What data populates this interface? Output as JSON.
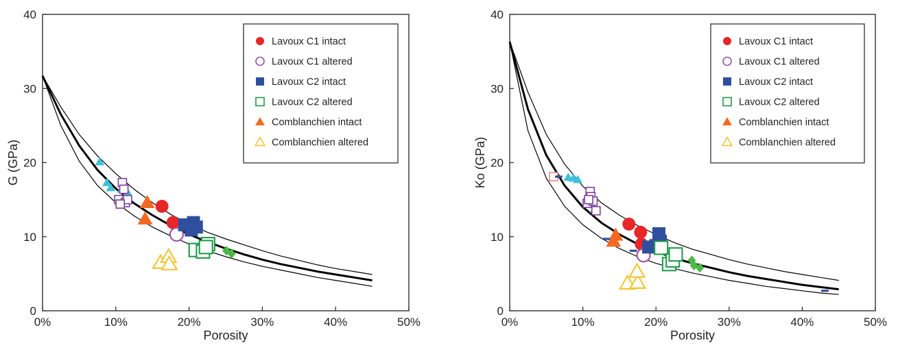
{
  "colors": {
    "lavoux_c1": "#e8262a",
    "lavoux_c1_altered": "#9b4fa6",
    "lavoux_c2": "#2f4f9e",
    "lavoux_c2_altered": "#1f9a4a",
    "comblanchien": "#f26a21",
    "comblanchien_altered": "#f4c430",
    "extra_purple": "#7b3f98",
    "extra_cyan": "#3fc1d8",
    "extra_green": "#4cb848",
    "extra_pink": "#e8868a",
    "curve": "#000000"
  },
  "chart_data": [
    {
      "type": "scatter",
      "title": "",
      "xlabel": "Porosity",
      "ylabel": "G (GPa)",
      "xlim": [
        0,
        50
      ],
      "ylim": [
        0,
        40
      ],
      "x_ticks": [
        "0%",
        "10%",
        "20%",
        "30%",
        "40%",
        "50%"
      ],
      "y_ticks": [
        "0",
        "10",
        "20",
        "30",
        "40"
      ],
      "legend": {
        "position": "top-right",
        "entries": [
          {
            "label": "Lavoux C1 intact",
            "marker": "circle-filled",
            "color_key": "lavoux_c1"
          },
          {
            "label": "Lavoux C1 altered",
            "marker": "circle-open",
            "color_key": "lavoux_c1_altered"
          },
          {
            "label": "Lavoux C2 intact",
            "marker": "square-filled",
            "color_key": "lavoux_c2"
          },
          {
            "label": "Lavoux C2 altered",
            "marker": "square-open",
            "color_key": "lavoux_c2_altered"
          },
          {
            "label": "Comblanchien intact",
            "marker": "triangle-filled",
            "color_key": "comblanchien"
          },
          {
            "label": "Comblanchien altered",
            "marker": "triangle-open",
            "color_key": "comblanchien_altered"
          }
        ]
      },
      "curves": {
        "x": [
          0,
          2.5,
          5,
          7.5,
          10,
          12.5,
          15,
          17.5,
          20,
          22.5,
          25,
          27.5,
          30,
          32.5,
          35,
          37.5,
          40,
          42.5,
          45
        ],
        "main": [
          31.7,
          26.5,
          22.3,
          19.0,
          16.5,
          14.5,
          12.9,
          11.5,
          10.3,
          9.3,
          8.4,
          7.6,
          6.9,
          6.3,
          5.8,
          5.3,
          4.9,
          4.5,
          4.1
        ],
        "upper": [
          31.7,
          27.5,
          23.8,
          20.9,
          18.5,
          16.4,
          14.6,
          13.0,
          11.7,
          10.6,
          9.7,
          8.9,
          8.1,
          7.4,
          6.8,
          6.2,
          5.7,
          5.3,
          4.9
        ],
        "lower": [
          31.7,
          25.0,
          20.2,
          16.9,
          14.6,
          12.8,
          11.3,
          10.1,
          9.0,
          8.1,
          7.3,
          6.6,
          6.0,
          5.5,
          5.0,
          4.5,
          4.1,
          3.7,
          3.3
        ]
      },
      "series": [
        {
          "color_key": "extra_cyan",
          "marker": "triangle-filled",
          "size": "small",
          "points": [
            [
              7.8,
              20.1
            ],
            [
              8.8,
              17.3
            ],
            [
              9.3,
              16.6
            ],
            [
              10.8,
              16.4
            ],
            [
              11.6,
              16.0
            ]
          ]
        },
        {
          "color_key": "extra_purple",
          "marker": "square-open",
          "size": "small",
          "points": [
            [
              10.4,
              15.0
            ],
            [
              10.9,
              17.3
            ],
            [
              11.1,
              16.4
            ],
            [
              11.3,
              14.6
            ],
            [
              11.6,
              15.0
            ],
            [
              10.6,
              14.4
            ]
          ]
        },
        {
          "color_key": "lavoux_c1",
          "marker": "circle-filled",
          "size": "large",
          "points": [
            [
              16.3,
              14.1
            ],
            [
              17.8,
              11.9
            ]
          ]
        },
        {
          "color_key": "lavoux_c1_altered",
          "marker": "circle-open",
          "size": "large",
          "points": [
            [
              18.3,
              10.3
            ]
          ]
        },
        {
          "color_key": "lavoux_c2",
          "marker": "square-filled",
          "size": "large",
          "points": [
            [
              19.4,
              11.6
            ],
            [
              20.6,
              11.9
            ],
            [
              20.3,
              10.9
            ],
            [
              21.0,
              11.3
            ]
          ]
        },
        {
          "color_key": "lavoux_c2_altered",
          "marker": "square-open",
          "size": "large",
          "points": [
            [
              20.9,
              8.2
            ],
            [
              21.9,
              8.0
            ],
            [
              22.6,
              9.0
            ],
            [
              22.3,
              8.6
            ]
          ]
        },
        {
          "color_key": "comblanchien",
          "marker": "triangle-filled",
          "size": "large",
          "points": [
            [
              14.3,
              14.6
            ],
            [
              14.0,
              12.4
            ]
          ]
        },
        {
          "color_key": "comblanchien_altered",
          "marker": "triangle-open",
          "size": "large",
          "points": [
            [
              16.1,
              6.5
            ],
            [
              17.2,
              7.3
            ],
            [
              17.3,
              6.3
            ]
          ]
        },
        {
          "color_key": "extra_green",
          "marker": "diamond-filled",
          "size": "small",
          "points": [
            [
              25.1,
              8.1
            ],
            [
              25.8,
              7.7
            ]
          ]
        }
      ]
    },
    {
      "type": "scatter",
      "title": "",
      "xlabel": "Porosity",
      "ylabel": "Ko (GPa)",
      "xlim": [
        0,
        50
      ],
      "ylim": [
        0,
        40
      ],
      "x_ticks": [
        "0%",
        "10%",
        "20%",
        "30%",
        "40%",
        "50%"
      ],
      "y_ticks": [
        "0",
        "10",
        "20",
        "30",
        "40"
      ],
      "legend": {
        "position": "top-right",
        "entries": [
          {
            "label": "Lavoux C1 intact",
            "marker": "circle-filled",
            "color_key": "lavoux_c1"
          },
          {
            "label": "Lavoux C1 altered",
            "marker": "circle-open",
            "color_key": "lavoux_c1_altered"
          },
          {
            "label": "Lavoux C2 intact",
            "marker": "square-filled",
            "color_key": "lavoux_c2"
          },
          {
            "label": "Lavoux C2 altered",
            "marker": "square-open",
            "color_key": "lavoux_c2_altered"
          },
          {
            "label": "Comblanchien intact",
            "marker": "triangle-filled",
            "color_key": "comblanchien"
          },
          {
            "label": "Comblanchien altered",
            "marker": "triangle-open",
            "color_key": "comblanchien_altered"
          }
        ]
      },
      "curves": {
        "x": [
          0,
          2.5,
          5,
          7.5,
          10,
          12.5,
          15,
          17.5,
          20,
          22.5,
          25,
          27.5,
          30,
          32.5,
          35,
          37.5,
          40,
          42.5,
          45
        ],
        "main": [
          36.3,
          27.2,
          21.0,
          16.9,
          14.0,
          11.9,
          10.3,
          9.0,
          8.0,
          7.1,
          6.4,
          5.8,
          5.2,
          4.7,
          4.3,
          3.9,
          3.5,
          3.2,
          2.9
        ],
        "upper": [
          36.3,
          29.5,
          23.8,
          19.8,
          16.8,
          14.6,
          12.9,
          11.5,
          10.3,
          9.2,
          8.3,
          7.6,
          6.9,
          6.3,
          5.8,
          5.3,
          4.9,
          4.5,
          4.1
        ],
        "lower": [
          36.3,
          24.3,
          17.9,
          14.1,
          11.6,
          9.8,
          8.4,
          7.3,
          6.4,
          5.7,
          5.1,
          4.6,
          4.1,
          3.7,
          3.3,
          3.0,
          2.7,
          2.4,
          2.2
        ]
      },
      "series": [
        {
          "color_key": "extra_pink",
          "marker": "square-open",
          "size": "small",
          "points": [
            [
              6.0,
              18.1
            ]
          ]
        },
        {
          "color_key": "extra_cyan",
          "marker": "triangle-filled",
          "size": "small",
          "points": [
            [
              8.0,
              18.0
            ],
            [
              8.7,
              17.9
            ],
            [
              9.3,
              17.7
            ],
            [
              10.9,
              14.4
            ],
            [
              11.6,
              13.7
            ]
          ]
        },
        {
          "color_key": "extra_purple",
          "marker": "square-open",
          "size": "small",
          "points": [
            [
              10.6,
              14.5
            ],
            [
              11.0,
              16.1
            ],
            [
              11.1,
              15.4
            ],
            [
              11.4,
              14.8
            ],
            [
              11.8,
              13.5
            ],
            [
              10.8,
              15.0
            ]
          ]
        },
        {
          "color_key": "lavoux_c1",
          "marker": "circle-filled",
          "size": "large",
          "points": [
            [
              16.3,
              11.7
            ],
            [
              17.9,
              10.6
            ],
            [
              18.0,
              9.0
            ]
          ]
        },
        {
          "color_key": "lavoux_c1_altered",
          "marker": "circle-open",
          "size": "large",
          "points": [
            [
              18.3,
              7.5
            ]
          ]
        },
        {
          "color_key": "lavoux_c2",
          "marker": "square-filled",
          "size": "large",
          "points": [
            [
              19.0,
              8.6
            ],
            [
              20.4,
              10.4
            ],
            [
              20.6,
              9.4
            ],
            [
              20.0,
              8.8
            ]
          ]
        },
        {
          "color_key": "lavoux_c2_altered",
          "marker": "square-open",
          "size": "large",
          "points": [
            [
              20.7,
              8.5
            ],
            [
              21.8,
              6.3
            ],
            [
              22.3,
              6.8
            ],
            [
              22.7,
              7.6
            ]
          ]
        },
        {
          "color_key": "comblanchien",
          "marker": "triangle-filled",
          "size": "large",
          "points": [
            [
              14.5,
              10.2
            ],
            [
              14.2,
              9.4
            ]
          ]
        },
        {
          "color_key": "comblanchien_altered",
          "marker": "triangle-open",
          "size": "large",
          "points": [
            [
              16.1,
              3.7
            ],
            [
              17.5,
              3.8
            ],
            [
              17.4,
              5.3
            ]
          ]
        },
        {
          "color_key": "extra_green",
          "marker": "diamond-filled",
          "size": "small",
          "points": [
            [
              24.9,
              6.8
            ],
            [
              25.2,
              6.1
            ],
            [
              26.0,
              5.8
            ]
          ]
        },
        {
          "color_key": "lavoux_c2",
          "marker": "dash",
          "size": "small",
          "points": [
            [
              6.7,
              18.1
            ],
            [
              13.2,
              9.7
            ],
            [
              16.9,
              8.1
            ],
            [
              43.1,
              2.7
            ]
          ]
        }
      ]
    }
  ]
}
